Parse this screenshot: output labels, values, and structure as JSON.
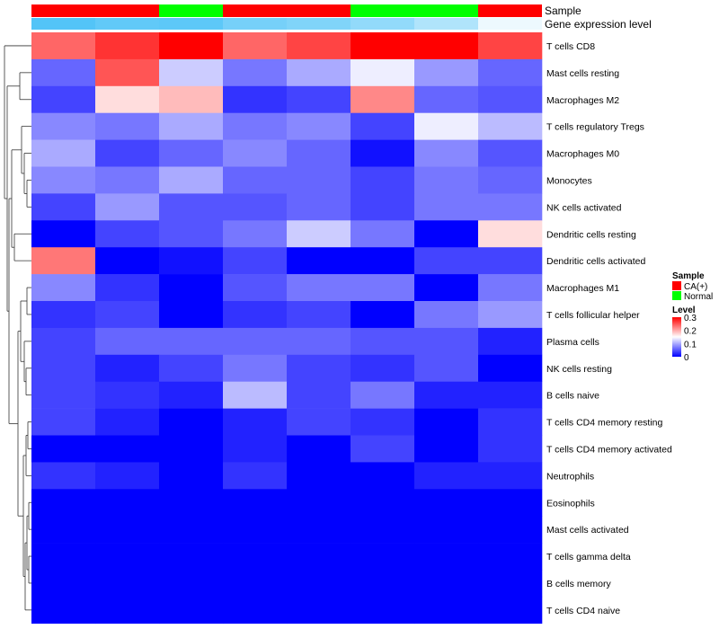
{
  "chart_data": {
    "type": "heatmap",
    "annotation_labels": {
      "sample": "Sample",
      "gene_expression": "Gene expression level"
    },
    "columns": [
      {
        "sample": "CA(+)",
        "gene_expression": 0.98
      },
      {
        "sample": "CA(+)",
        "gene_expression": 0.9
      },
      {
        "sample": "Normal",
        "gene_expression": 0.92
      },
      {
        "sample": "CA(+)",
        "gene_expression": 0.78
      },
      {
        "sample": "CA(+)",
        "gene_expression": 0.72
      },
      {
        "sample": "Normal",
        "gene_expression": 0.62
      },
      {
        "sample": "Normal",
        "gene_expression": 0.45
      },
      {
        "sample": "CA(+)",
        "gene_expression": 0.1
      }
    ],
    "rows": [
      "T cells CD8",
      "Mast cells resting",
      "Macrophages M2",
      "T cells regulatory  Tregs",
      "Macrophages M0",
      "Monocytes",
      "NK cells activated",
      "Dendritic cells resting",
      "Dendritic cells activated",
      "Macrophages M1",
      "T cells follicular helper",
      "Plasma cells",
      "NK cells resting",
      "B cells naive",
      "T cells CD4 memory resting",
      "T cells CD4 memory activated",
      "Neutrophils",
      "Eosinophils",
      "Mast cells activated",
      "T cells gamma delta",
      "B cells memory",
      "T cells CD4 naive"
    ],
    "values": [
      [
        0.24,
        0.27,
        0.3,
        0.24,
        0.26,
        0.3,
        0.3,
        0.26
      ],
      [
        0.06,
        0.25,
        0.12,
        0.07,
        0.1,
        0.14,
        0.09,
        0.06
      ],
      [
        0.04,
        0.17,
        0.19,
        0.03,
        0.04,
        0.22,
        0.06,
        0.05
      ],
      [
        0.08,
        0.07,
        0.1,
        0.07,
        0.08,
        0.04,
        0.14,
        0.11
      ],
      [
        0.1,
        0.04,
        0.06,
        0.08,
        0.06,
        0.01,
        0.08,
        0.05
      ],
      [
        0.08,
        0.07,
        0.1,
        0.06,
        0.06,
        0.04,
        0.07,
        0.06
      ],
      [
        0.04,
        0.09,
        0.05,
        0.05,
        0.06,
        0.04,
        0.07,
        0.07
      ],
      [
        0.0,
        0.04,
        0.05,
        0.07,
        0.12,
        0.07,
        0.0,
        0.17
      ],
      [
        0.23,
        0.0,
        0.01,
        0.04,
        0.0,
        0.0,
        0.04,
        0.04
      ],
      [
        0.08,
        0.03,
        0.0,
        0.05,
        0.07,
        0.07,
        0.0,
        0.07
      ],
      [
        0.03,
        0.04,
        0.0,
        0.03,
        0.04,
        0.0,
        0.07,
        0.09
      ],
      [
        0.04,
        0.06,
        0.06,
        0.06,
        0.06,
        0.05,
        0.05,
        0.02
      ],
      [
        0.04,
        0.02,
        0.04,
        0.07,
        0.04,
        0.03,
        0.05,
        0.0
      ],
      [
        0.04,
        0.03,
        0.02,
        0.11,
        0.04,
        0.07,
        0.02,
        0.02
      ],
      [
        0.04,
        0.02,
        0.0,
        0.02,
        0.04,
        0.03,
        0.0,
        0.03
      ],
      [
        0.0,
        0.0,
        0.0,
        0.02,
        0.0,
        0.04,
        0.0,
        0.03
      ],
      [
        0.03,
        0.02,
        0.0,
        0.03,
        0.0,
        0.0,
        0.02,
        0.02
      ],
      [
        0.0,
        0.0,
        0.0,
        0.0,
        0.0,
        0.0,
        0.0,
        0.0
      ],
      [
        0.0,
        0.0,
        0.0,
        0.0,
        0.0,
        0.0,
        0.0,
        0.0
      ],
      [
        0.0,
        0.0,
        0.0,
        0.0,
        0.0,
        0.0,
        0.0,
        0.0
      ],
      [
        0.0,
        0.0,
        0.0,
        0.0,
        0.0,
        0.0,
        0.0,
        0.0
      ],
      [
        0.0,
        0.0,
        0.0,
        0.0,
        0.0,
        0.0,
        0.0,
        0.0
      ]
    ],
    "color_scale": {
      "min": 0,
      "mid": 0.15,
      "max": 0.3,
      "low_color": "#0000ff",
      "mid_color": "#ffffff",
      "high_color": "#ff0000"
    },
    "sample_colors": {
      "CA(+)": "#ff0000",
      "Normal": "#00ff00"
    },
    "gene_expression_colors": {
      "low": "#ffffff",
      "high": "#4fc3f7"
    },
    "legend": {
      "sample_title": "Sample",
      "sample_items": [
        "CA(+)",
        "Normal"
      ],
      "level_title": "Level",
      "level_ticks": [
        "0.3",
        "0.2",
        "0.1",
        "0"
      ],
      "level_tick_values": [
        0.3,
        0.2,
        0.1,
        0
      ],
      "placement": "right"
    },
    "row_dendrogram": {
      "shown": true,
      "side": "left"
    }
  }
}
